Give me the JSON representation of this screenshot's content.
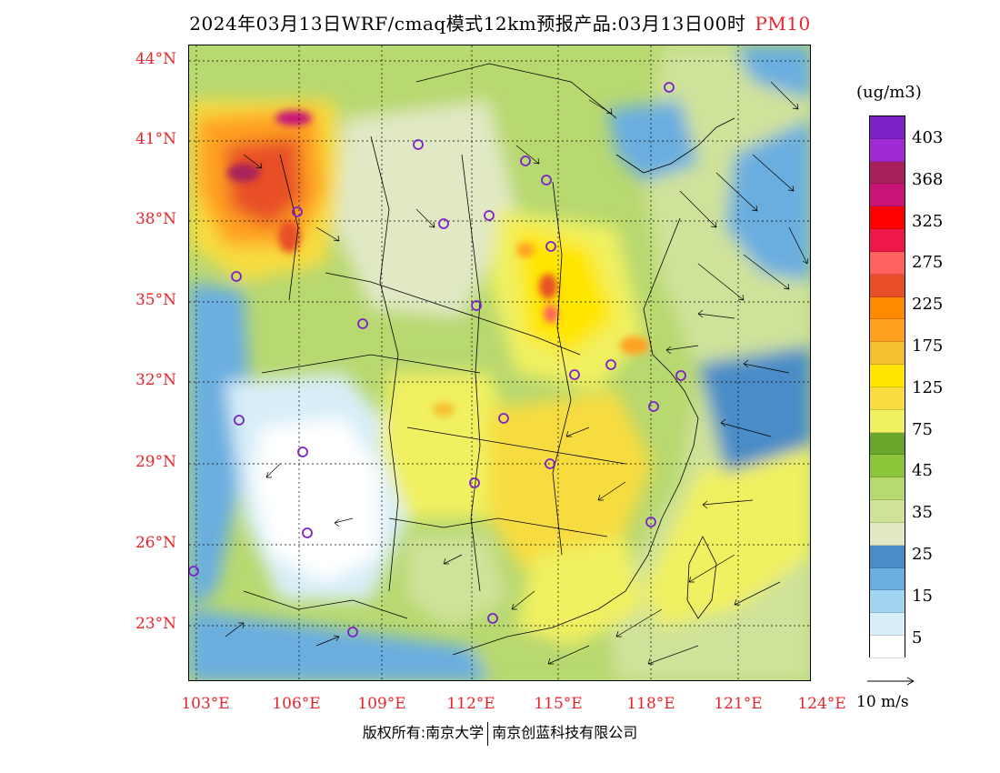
{
  "title": {
    "main": "2024年03月13日WRF/cmaq模式12km预报产品:03月13日00时",
    "pollutant": "PM10"
  },
  "axes": {
    "lat_labels": [
      "44°N",
      "41°N",
      "38°N",
      "35°N",
      "32°N",
      "29°N",
      "26°N",
      "23°N"
    ],
    "lon_labels": [
      "103°E",
      "106°E",
      "109°E",
      "112°E",
      "115°E",
      "118°E",
      "121°E",
      "124°E"
    ]
  },
  "colorbar": {
    "unit": "(ug/m3)",
    "labels": [
      "403",
      "368",
      "325",
      "275",
      "225",
      "175",
      "125",
      "75",
      "45",
      "35",
      "25",
      "15",
      "5"
    ],
    "colors": [
      "#7b22c8",
      "#a12ad6",
      "#a8205a",
      "#c81479",
      "#ff0000",
      "#f01848",
      "#ff6060",
      "#e84f28",
      "#ff8a00",
      "#ffa020",
      "#f5c030",
      "#ffe600",
      "#f7dc40",
      "#f0f060",
      "#6aa62a",
      "#8cc43a",
      "#b8d870",
      "#cfe29a",
      "#e0e8c4",
      "#4a8cc8",
      "#6aaee0",
      "#a0d4f0",
      "#d8eef8",
      "#ffffff"
    ]
  },
  "wind_reference": {
    "label": "10 m/s"
  },
  "footer": {
    "left": "版权所有:南京大学",
    "right": "南京创蓝科技有限公司"
  }
}
